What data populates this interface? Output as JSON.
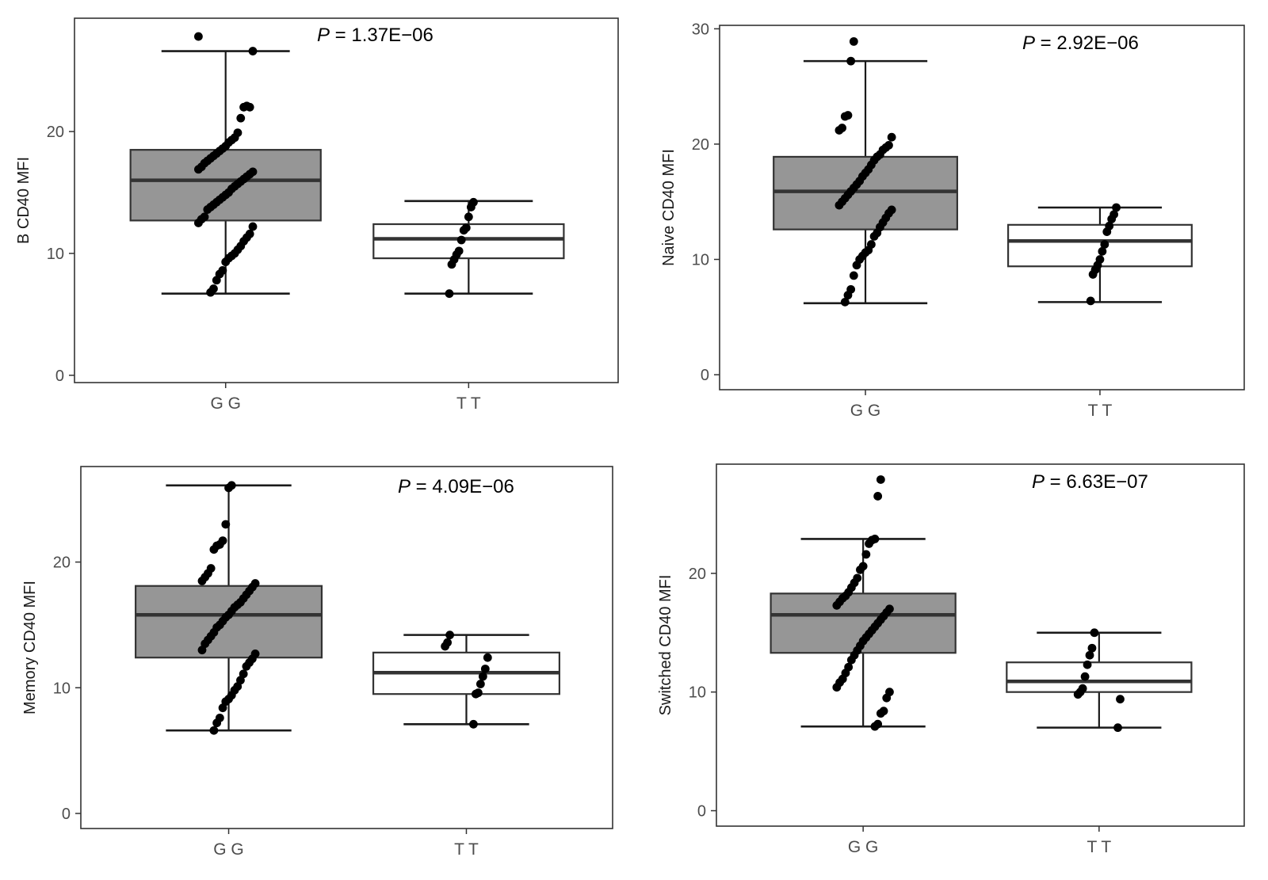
{
  "chart_data": [
    {
      "type": "box",
      "ylabel": "B CD40 MFI",
      "pvalue_label": "P",
      "pvalue_text": " = 1.37E−06",
      "categories": [
        "G G",
        "T T"
      ],
      "yticks": [
        0,
        10,
        20
      ],
      "ylim": [
        -0.6,
        29.3
      ],
      "boxes": [
        {
          "group": "G G",
          "fill": "#969696",
          "min": 6.7,
          "q1": 12.7,
          "median": 16.0,
          "q3": 18.5,
          "max": 26.6,
          "points": [
            27.8,
            26.6,
            22.0,
            22.1,
            22.0,
            21.1,
            19.9,
            19.5,
            19.3,
            19.1,
            18.8,
            18.6,
            18.4,
            18.2,
            18.0,
            17.8,
            17.6,
            17.4,
            17.1,
            16.9,
            16.7,
            16.5,
            16.3,
            16.1,
            15.9,
            15.7,
            15.5,
            15.3,
            15.0,
            14.8,
            14.6,
            14.4,
            14.2,
            14.0,
            13.8,
            13.6,
            13.0,
            12.8,
            12.5,
            12.2,
            11.6,
            11.3,
            11.0,
            10.6,
            10.3,
            10.0,
            9.8,
            9.6,
            9.3,
            8.6,
            8.3,
            7.8,
            7.1,
            6.8
          ]
        },
        {
          "group": "T T",
          "fill": "#ffffff",
          "min": 6.7,
          "q1": 9.6,
          "median": 11.2,
          "q3": 12.4,
          "max": 14.3,
          "points": [
            14.2,
            13.8,
            13.0,
            12.1,
            11.9,
            11.1,
            10.2,
            9.9,
            9.5,
            9.1,
            6.7
          ]
        }
      ]
    },
    {
      "type": "box",
      "ylabel": "Naive CD40 MFI",
      "pvalue_label": "P",
      "pvalue_text": " = 2.92E−06",
      "categories": [
        "G G",
        "T T"
      ],
      "yticks": [
        0,
        10,
        20,
        30
      ],
      "ylim": [
        -1.3,
        30.3
      ],
      "boxes": [
        {
          "group": "G G",
          "fill": "#969696",
          "min": 6.2,
          "q1": 12.6,
          "median": 15.9,
          "q3": 18.9,
          "max": 27.2,
          "points": [
            28.9,
            27.2,
            22.5,
            22.4,
            21.4,
            21.2,
            20.6,
            19.9,
            19.7,
            19.5,
            19.1,
            18.9,
            18.6,
            18.2,
            17.8,
            17.5,
            17.2,
            16.8,
            16.5,
            16.2,
            15.9,
            15.6,
            15.3,
            15.0,
            14.7,
            14.3,
            14.0,
            13.6,
            13.2,
            12.8,
            12.3,
            12.0,
            11.3,
            10.8,
            10.6,
            10.3,
            10.0,
            9.5,
            8.6,
            7.4,
            6.9,
            6.3
          ]
        },
        {
          "group": "T T",
          "fill": "#ffffff",
          "min": 6.3,
          "q1": 9.4,
          "median": 11.6,
          "q3": 13.0,
          "max": 14.5,
          "points": [
            14.5,
            13.9,
            13.5,
            12.9,
            12.4,
            11.3,
            10.7,
            10.0,
            9.5,
            9.1,
            8.7,
            6.4
          ]
        }
      ]
    },
    {
      "type": "box",
      "ylabel": "Memory CD40 MFI",
      "pvalue_label": "P",
      "pvalue_text": " = 4.09E−06",
      "categories": [
        "G G",
        "T T"
      ],
      "yticks": [
        0,
        10,
        20
      ],
      "ylim": [
        -1.2,
        27.6
      ],
      "boxes": [
        {
          "group": "G G",
          "fill": "#969696",
          "min": 6.6,
          "q1": 12.4,
          "median": 15.8,
          "q3": 18.1,
          "max": 26.1,
          "points": [
            26.1,
            25.9,
            23.0,
            21.7,
            21.4,
            21.3,
            21.0,
            19.5,
            19.1,
            18.8,
            18.5,
            18.3,
            18.0,
            17.7,
            17.4,
            17.1,
            16.8,
            16.6,
            16.4,
            16.1,
            15.8,
            15.6,
            15.3,
            15.0,
            14.8,
            14.4,
            14.1,
            13.8,
            13.5,
            13.0,
            12.7,
            12.3,
            12.0,
            11.7,
            11.1,
            10.6,
            10.1,
            9.8,
            9.4,
            9.1,
            8.9,
            8.4,
            7.6,
            7.2,
            6.6
          ]
        },
        {
          "group": "T T",
          "fill": "#ffffff",
          "min": 7.1,
          "q1": 9.5,
          "median": 11.2,
          "q3": 12.8,
          "max": 14.2,
          "points": [
            14.2,
            13.6,
            13.3,
            12.4,
            11.5,
            10.9,
            10.3,
            9.6,
            9.5,
            7.1
          ]
        }
      ]
    },
    {
      "type": "box",
      "ylabel": "Switched CD40 MFI",
      "pvalue_label": "P",
      "pvalue_text": " = 6.63E−07",
      "categories": [
        "G G",
        "T T"
      ],
      "yticks": [
        0,
        10,
        20
      ],
      "ylim": [
        -1.3,
        29.2
      ],
      "boxes": [
        {
          "group": "G G",
          "fill": "#969696",
          "min": 7.1,
          "q1": 13.3,
          "median": 16.5,
          "q3": 18.3,
          "max": 22.9,
          "points": [
            27.9,
            26.5,
            22.9,
            22.8,
            22.5,
            21.6,
            20.6,
            20.3,
            19.6,
            19.2,
            18.8,
            18.4,
            18.1,
            17.9,
            17.6,
            17.3,
            17.0,
            16.7,
            16.4,
            16.1,
            15.8,
            15.5,
            15.2,
            14.9,
            14.6,
            14.3,
            13.9,
            13.5,
            13.1,
            12.7,
            12.1,
            11.6,
            11.1,
            10.8,
            10.4,
            10.0,
            9.5,
            8.4,
            8.2,
            7.3,
            7.1
          ]
        },
        {
          "group": "T T",
          "fill": "#ffffff",
          "min": 7.0,
          "q1": 10.0,
          "median": 10.9,
          "q3": 12.5,
          "max": 15.0,
          "points": [
            15.0,
            13.7,
            13.1,
            12.3,
            11.3,
            10.3,
            10.0,
            9.8,
            9.4,
            7.0
          ]
        }
      ]
    }
  ]
}
